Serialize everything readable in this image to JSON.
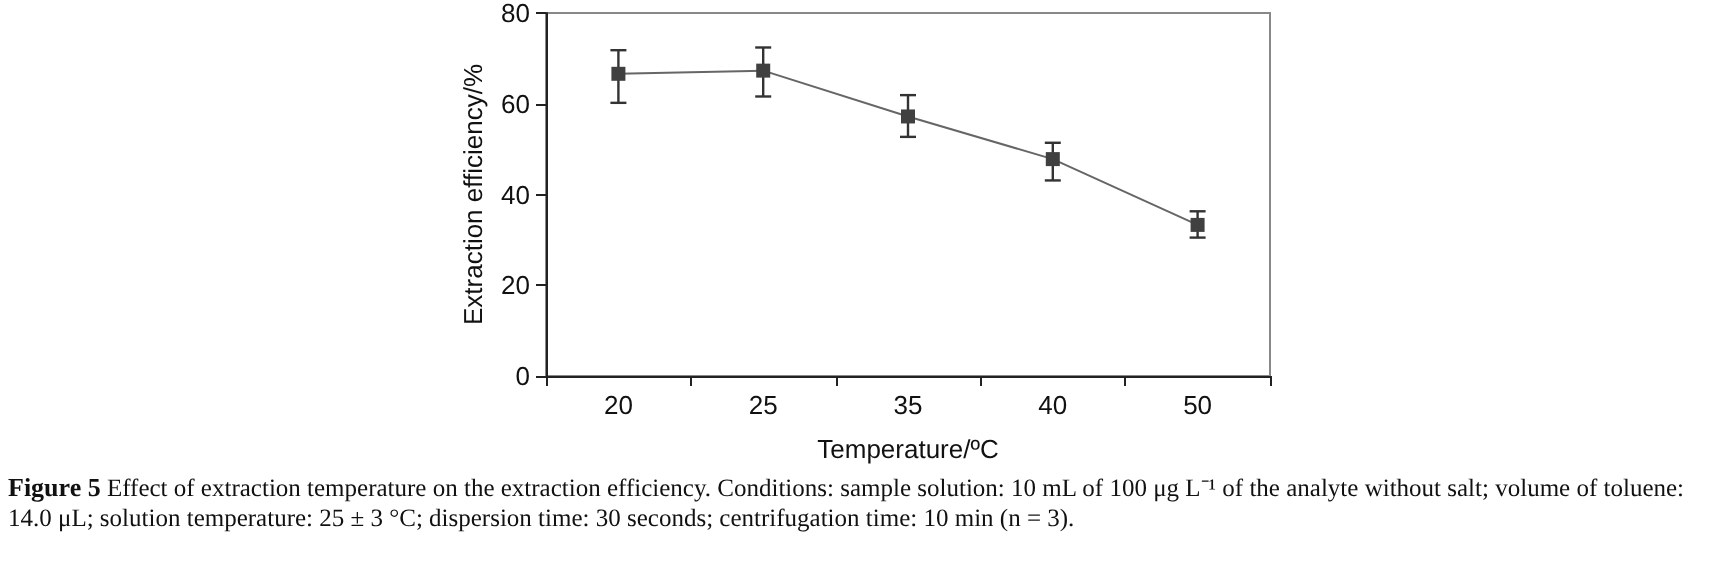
{
  "chart_data": {
    "type": "line",
    "xlabel": "Temperature/ºC",
    "ylabel": "Extraction efficiency/%",
    "categories": [
      "20",
      "25",
      "35",
      "40",
      "50"
    ],
    "series": [
      {
        "color": "#404040",
        "values": [
          66.6,
          67.3,
          57.2,
          47.8,
          33.3
        ],
        "errors": [
          [
            60.2,
            71.8
          ],
          [
            61.6,
            72.4
          ],
          [
            52.7,
            61.9
          ],
          [
            43.1,
            51.4
          ],
          [
            30.5,
            36.3
          ]
        ]
      }
    ],
    "ylim": [
      0,
      80
    ],
    "yticks": [
      0,
      20,
      40,
      60,
      80
    ],
    "grid": false,
    "marker": "square",
    "line_style": "solid",
    "annotations": [
      "Figure 5",
      "Effect of extraction temperature on the extraction efficiency. Conditions: sample solution: 10 mL of 100 μg L⁻¹ of the analyte without salt; volume of toluene: 14.0 μL; solution temperature: 25 ± 3 °C; dispersion time: 30 seconds; centrifugation time: 10 min (n = 3)."
    ]
  }
}
